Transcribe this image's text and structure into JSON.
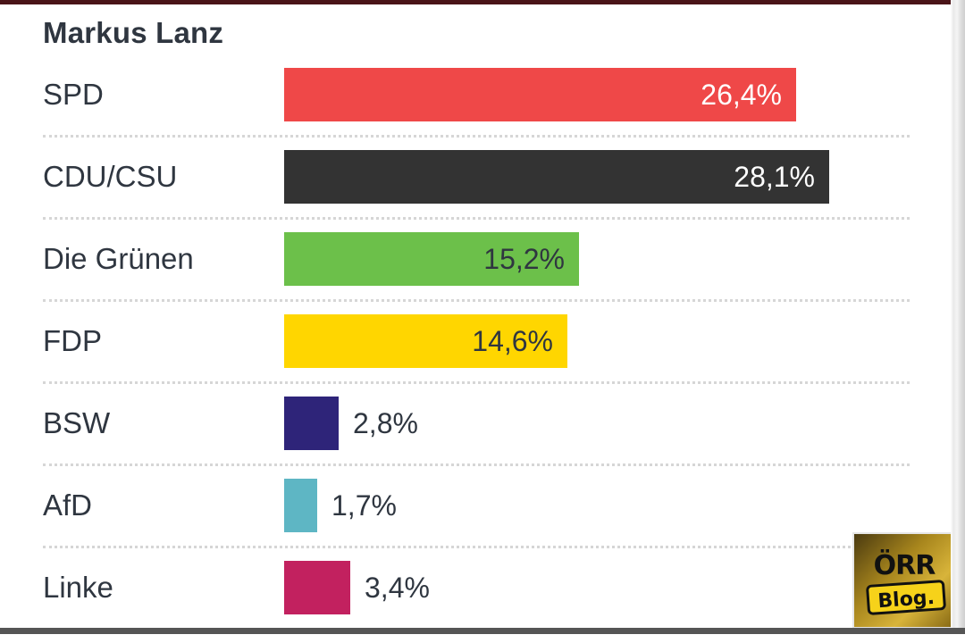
{
  "chart_data": {
    "type": "bar",
    "orientation": "horizontal",
    "title": "Markus Lanz",
    "categories": [
      "SPD",
      "CDU/CSU",
      "Die Grünen",
      "FDP",
      "BSW",
      "AfD",
      "Linke"
    ],
    "values": [
      26.4,
      28.1,
      15.2,
      14.6,
      2.8,
      1.7,
      3.4
    ],
    "value_labels": [
      "26,4%",
      "28,1%",
      "15,2%",
      "14,6%",
      "2,8%",
      "1,7%",
      "3,4%"
    ],
    "colors": [
      "#ef4848",
      "#333333",
      "#6cc04a",
      "#ffd600",
      "#2e2479",
      "#5eb6c4",
      "#c2215f"
    ],
    "label_colors": [
      "#ffffff",
      "#ffffff",
      "#2f3640",
      "#2f3640",
      "#2f3640",
      "#2f3640",
      "#2f3640"
    ],
    "xlim": [
      0,
      30
    ],
    "grid": false,
    "legend": "none"
  },
  "logo": {
    "top_text": "ÖRR",
    "bottom_text": "Blog."
  }
}
